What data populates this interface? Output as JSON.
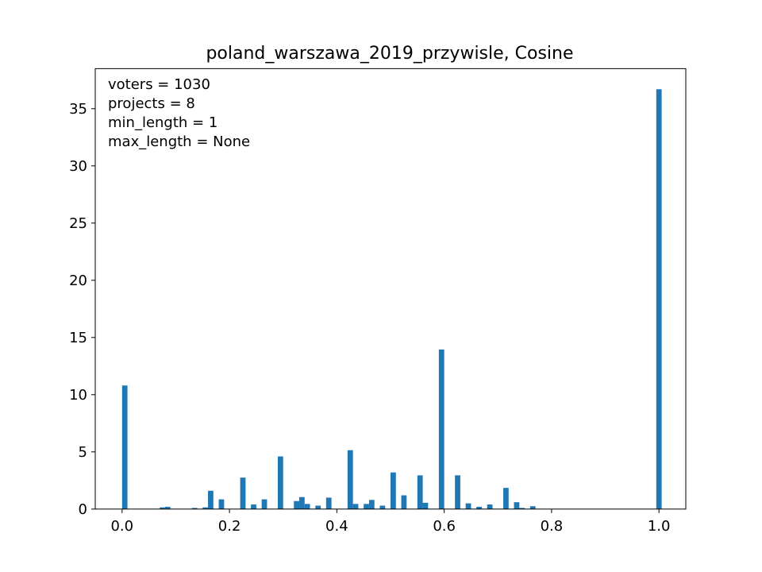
{
  "chart_data": {
    "type": "bar",
    "title": "poland_warszawa_2019_przywisle, Cosine",
    "xlabel": "",
    "ylabel": "",
    "xlim": [
      -0.05,
      1.05
    ],
    "ylim": [
      0,
      38.5
    ],
    "bar_width": 0.01,
    "bar_color": "#1f77b4",
    "grid": false,
    "x_ticks": [
      0.0,
      0.2,
      0.4,
      0.6,
      0.8,
      1.0
    ],
    "x_tick_labels": [
      "0.0",
      "0.2",
      "0.4",
      "0.6",
      "0.8",
      "1.0"
    ],
    "y_ticks": [
      0,
      5,
      10,
      15,
      20,
      25,
      30,
      35
    ],
    "y_tick_labels": [
      "0",
      "5",
      "10",
      "15",
      "20",
      "25",
      "30",
      "35"
    ],
    "annotations": [
      "voters = 1030",
      "projects = 8",
      "min_length = 1",
      "max_length = None"
    ],
    "x": [
      0.005,
      0.075,
      0.085,
      0.135,
      0.155,
      0.165,
      0.185,
      0.225,
      0.245,
      0.265,
      0.295,
      0.325,
      0.335,
      0.345,
      0.365,
      0.385,
      0.425,
      0.435,
      0.455,
      0.465,
      0.485,
      0.505,
      0.525,
      0.555,
      0.565,
      0.595,
      0.625,
      0.645,
      0.665,
      0.685,
      0.715,
      0.735,
      0.745,
      0.765,
      1.0
    ],
    "values": [
      10.8,
      0.15,
      0.2,
      0.1,
      0.15,
      1.6,
      0.85,
      2.75,
      0.4,
      0.85,
      4.6,
      0.7,
      1.05,
      0.45,
      0.3,
      1.0,
      5.15,
      0.45,
      0.45,
      0.8,
      0.3,
      3.2,
      1.2,
      2.95,
      0.55,
      13.95,
      2.95,
      0.5,
      0.2,
      0.4,
      1.85,
      0.6,
      0.1,
      0.25,
      36.7
    ]
  }
}
